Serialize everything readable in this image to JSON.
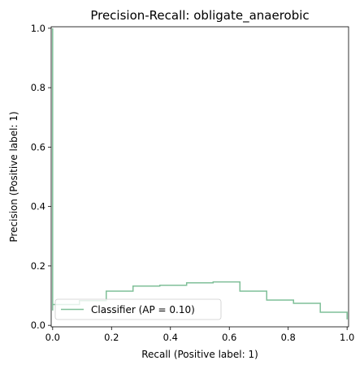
{
  "chart_data": {
    "type": "line",
    "title": "Precision-Recall: obligate_anaerobic",
    "xlabel": "Recall (Positive label: 1)",
    "ylabel": "Precision (Positive label: 1)",
    "xlim": [
      -0.005,
      1.005
    ],
    "ylim": [
      -0.005,
      1.005
    ],
    "xticks": [
      0.0,
      0.2,
      0.4,
      0.6,
      0.8,
      1.0
    ],
    "xtick_labels": [
      "0.0",
      "0.2",
      "0.4",
      "0.6",
      "0.8",
      "1.0"
    ],
    "yticks": [
      0.0,
      0.2,
      0.4,
      0.6,
      0.8,
      1.0
    ],
    "ytick_labels": [
      "0.0",
      "0.2",
      "0.4",
      "0.6",
      "0.8",
      "1.0"
    ],
    "grid": false,
    "legend_position": "lower-left",
    "series": [
      {
        "name": "Classifier (AP = 0.10)",
        "color": "#7fbf98",
        "x": [
          0.0,
          0.0,
          0.0,
          0.091,
          0.091,
          0.182,
          0.182,
          0.273,
          0.273,
          0.364,
          0.364,
          0.455,
          0.455,
          0.545,
          0.545,
          0.636,
          0.636,
          0.727,
          0.727,
          0.818,
          0.818,
          0.909,
          0.909,
          1.0,
          1.0
        ],
        "y": [
          1.0,
          0.05,
          0.07,
          0.07,
          0.083,
          0.083,
          0.115,
          0.115,
          0.132,
          0.132,
          0.135,
          0.135,
          0.143,
          0.143,
          0.146,
          0.146,
          0.115,
          0.115,
          0.085,
          0.085,
          0.074,
          0.074,
          0.044,
          0.044,
          0.02
        ]
      }
    ]
  }
}
